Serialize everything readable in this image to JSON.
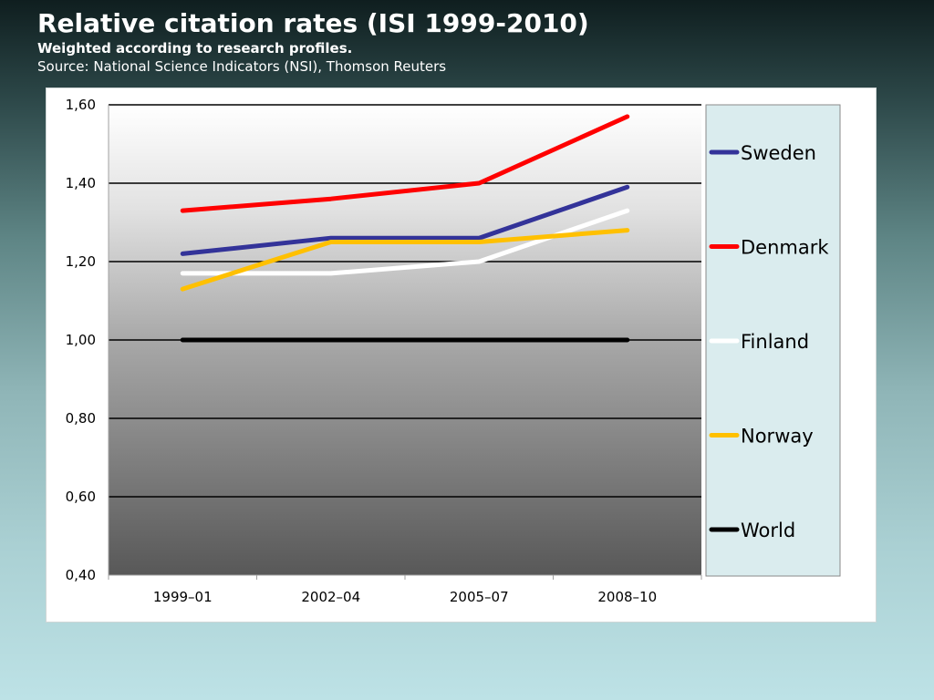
{
  "slide": {
    "title": "Relative citation rates (ISI 1999-2010)",
    "subtitle": "Weighted according to research profiles.",
    "source": "Source: National Science Indicators (NSI), Thomson Reuters"
  },
  "chart_data": {
    "type": "line",
    "categories": [
      "1999–01",
      "2002–04",
      "2005–07",
      "2008–10"
    ],
    "ylim": [
      0.4,
      1.6
    ],
    "yticks": [
      0.4,
      0.6,
      0.8,
      1.0,
      1.2,
      1.4,
      1.6
    ],
    "ytick_labels": [
      "0,40",
      "0,60",
      "0,80",
      "1,00",
      "1,20",
      "1,40",
      "1,60"
    ],
    "grid": true,
    "legend_position": "right",
    "series": [
      {
        "name": "Sweden",
        "color": "#333399",
        "values": [
          1.22,
          1.26,
          1.26,
          1.39
        ]
      },
      {
        "name": "Denmark",
        "color": "#ff0000",
        "values": [
          1.33,
          1.36,
          1.4,
          1.57
        ]
      },
      {
        "name": "Finland",
        "color": "#ffffff",
        "values": [
          1.17,
          1.17,
          1.2,
          1.33
        ]
      },
      {
        "name": "Norway",
        "color": "#ffc000",
        "values": [
          1.13,
          1.25,
          1.25,
          1.28
        ]
      },
      {
        "name": "World",
        "color": "#000000",
        "values": [
          1.0,
          1.0,
          1.0,
          1.0
        ]
      }
    ]
  }
}
